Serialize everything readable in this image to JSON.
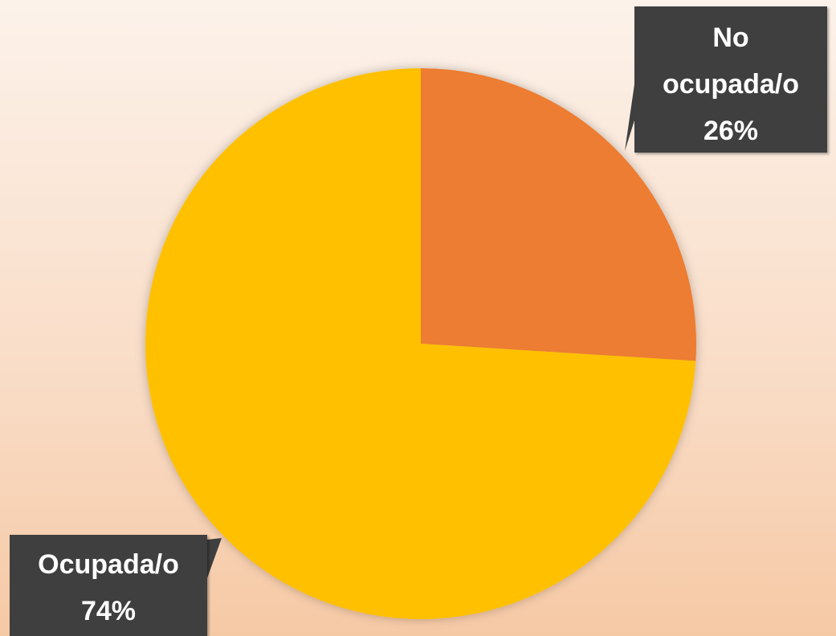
{
  "chart_data": {
    "type": "pie",
    "categories": [
      "No ocupada/o",
      "Ocupada/o"
    ],
    "values": [
      26,
      74
    ],
    "value_labels": [
      "26%",
      "74%"
    ],
    "colors": [
      "#ED7D31",
      "#FFC000"
    ]
  }
}
